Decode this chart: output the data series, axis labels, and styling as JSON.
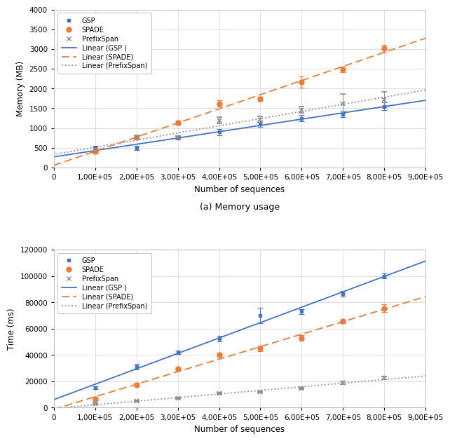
{
  "x_values": [
    100000,
    200000,
    300000,
    400000,
    500000,
    600000,
    700000,
    800000
  ],
  "mem_gsp_y": [
    490,
    500,
    750,
    900,
    1100,
    1250,
    1350,
    1550
  ],
  "mem_gsp_yerr": [
    60,
    50,
    30,
    80,
    80,
    80,
    80,
    100
  ],
  "mem_spade_y": [
    410,
    760,
    1130,
    1620,
    1740,
    2160,
    2490,
    3010
  ],
  "mem_spade_yerr": [
    60,
    50,
    50,
    80,
    60,
    140,
    70,
    100
  ],
  "mem_prefix_y": [
    460,
    760,
    760,
    1190,
    1210,
    1460,
    1620,
    1720
  ],
  "mem_prefix_yerr": [
    60,
    50,
    30,
    80,
    80,
    80,
    250,
    200
  ],
  "time_gsp_y": [
    15000,
    31000,
    42000,
    52500,
    70000,
    73000,
    86500,
    100000
  ],
  "time_gsp_yerr": [
    1000,
    2000,
    1500,
    2000,
    6000,
    2000,
    2000,
    2000
  ],
  "time_spade_y": [
    6500,
    17500,
    29500,
    40000,
    45000,
    53000,
    65500,
    75500
  ],
  "time_spade_yerr": [
    1000,
    1500,
    1000,
    1500,
    2000,
    2000,
    1500,
    3000
  ],
  "time_prefix_y": [
    3000,
    5000,
    7000,
    11000,
    12000,
    14500,
    19000,
    22500
  ],
  "time_prefix_yerr": [
    500,
    500,
    500,
    500,
    500,
    500,
    1000,
    1000
  ],
  "color_gsp": "#4472c4",
  "color_spade": "#e87c3b",
  "color_prefix": "#8c8c8c",
  "mem_ylabel": "Memory (MB)",
  "time_ylabel": "Time (ms)",
  "xlabel": "Number of sequences",
  "mem_caption": "(a) Memory usage",
  "xlim": [
    0,
    900000
  ],
  "mem_ylim": [
    0,
    4000
  ],
  "time_ylim": [
    0,
    120000
  ],
  "mem_yticks": [
    0,
    500,
    1000,
    1500,
    2000,
    2500,
    3000,
    3500,
    4000
  ],
  "time_yticks": [
    0,
    20000,
    40000,
    60000,
    80000,
    100000,
    120000
  ],
  "xticks": [
    0,
    100000,
    200000,
    300000,
    400000,
    500000,
    600000,
    700000,
    800000,
    900000
  ]
}
